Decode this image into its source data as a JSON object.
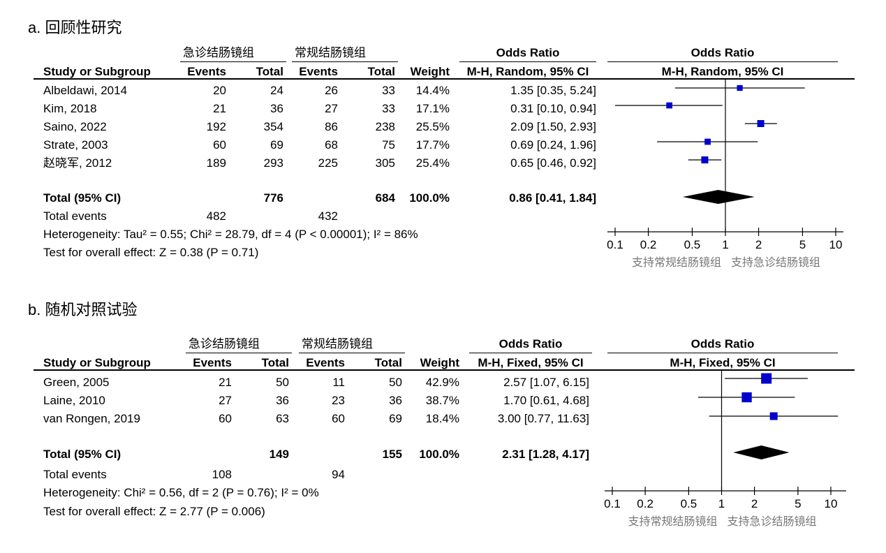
{
  "panels": [
    {
      "title": "a. 回顾性研究",
      "group1": "急诊结肠镜组",
      "group2": "常规结肠镜组",
      "col_study": "Study or Subgroup",
      "col_events": "Events",
      "col_total": "Total",
      "col_weight": "Weight",
      "or_header": "Odds Ratio",
      "or_method": "M-H, Random, 95% CI",
      "studies": [
        {
          "name": "Albeldawi, 2014",
          "e1": "20",
          "t1": "24",
          "e2": "26",
          "t2": "33",
          "weight": "14.4%",
          "ci": "1.35 [0.35, 5.24]"
        },
        {
          "name": "Kim, 2018",
          "e1": "21",
          "t1": "36",
          "e2": "27",
          "t2": "33",
          "weight": "17.1%",
          "ci": "0.31 [0.10, 0.94]"
        },
        {
          "name": "Saino, 2022",
          "e1": "192",
          "t1": "354",
          "e2": "86",
          "t2": "238",
          "weight": "25.5%",
          "ci": "2.09 [1.50, 2.93]"
        },
        {
          "name": "Strate, 2003",
          "e1": "60",
          "t1": "69",
          "e2": "68",
          "t2": "75",
          "weight": "17.7%",
          "ci": "0.69 [0.24, 1.96]"
        },
        {
          "name": "赵晓军, 2012",
          "e1": "189",
          "t1": "293",
          "e2": "225",
          "t2": "305",
          "weight": "25.4%",
          "ci": "0.65 [0.46, 0.92]"
        }
      ],
      "total": {
        "label": "Total (95% CI)",
        "t1": "776",
        "t2": "684",
        "weight": "100.0%",
        "ci": "0.86 [0.41, 1.84]"
      },
      "events": {
        "label": "Total events",
        "e1": "482",
        "e2": "432"
      },
      "heterogeneity": "Heterogeneity: Tau² = 0.55; Chi² = 28.79, df = 4 (P < 0.00001); I² = 86%",
      "overall": "Test for overall effect: Z = 0.38 (P = 0.71)",
      "ticks": [
        "0.1",
        "0.2",
        "0.5",
        "1",
        "2",
        "5",
        "10"
      ],
      "favours_left": "支持常规结肠镜组",
      "favours_right": "支持急诊结肠镜组"
    },
    {
      "title": "b. 随机对照试验",
      "group1": "急诊结肠镜组",
      "group2": "常规结肠镜组",
      "col_study": "Study or Subgroup",
      "col_events": "Events",
      "col_total": "Total",
      "col_weight": "Weight",
      "or_header": "Odds Ratio",
      "or_method": "M-H, Fixed, 95% CI",
      "studies": [
        {
          "name": "Green, 2005",
          "e1": "21",
          "t1": "50",
          "e2": "11",
          "t2": "50",
          "weight": "42.9%",
          "ci": "2.57 [1.07, 6.15]"
        },
        {
          "name": "Laine, 2010",
          "e1": "27",
          "t1": "36",
          "e2": "23",
          "t2": "36",
          "weight": "38.7%",
          "ci": "1.70 [0.61, 4.68]"
        },
        {
          "name": "van Rongen, 2019",
          "e1": "60",
          "t1": "63",
          "e2": "60",
          "t2": "69",
          "weight": "18.4%",
          "ci": "3.00 [0.77, 11.63]"
        }
      ],
      "total": {
        "label": "Total (95% CI)",
        "t1": "149",
        "t2": "155",
        "weight": "100.0%",
        "ci": "2.31 [1.28, 4.17]"
      },
      "events": {
        "label": "Total events",
        "e1": "108",
        "e2": "94"
      },
      "heterogeneity": "Heterogeneity: Chi² = 0.56, df = 2 (P = 0.76); I² = 0%",
      "overall": "Test for overall effect: Z = 2.77 (P = 0.006)",
      "ticks": [
        "0.1",
        "0.2",
        "0.5",
        "1",
        "2",
        "5",
        "10"
      ],
      "favours_left": "支持常规结肠镜组",
      "favours_right": "支持急诊结肠镜组"
    }
  ],
  "chart_data": [
    {
      "type": "forest",
      "scale": "log",
      "xlim": [
        0.1,
        10
      ],
      "x_ticks": [
        0.1,
        0.2,
        0.5,
        1,
        2,
        5,
        10
      ],
      "studies": [
        {
          "name": "Albeldawi, 2014",
          "or": 1.35,
          "lo": 0.35,
          "hi": 5.24,
          "weight": 14.4
        },
        {
          "name": "Kim, 2018",
          "or": 0.31,
          "lo": 0.1,
          "hi": 0.94,
          "weight": 17.1
        },
        {
          "name": "Saino, 2022",
          "or": 2.09,
          "lo": 1.5,
          "hi": 2.93,
          "weight": 25.5
        },
        {
          "name": "Strate, 2003",
          "or": 0.69,
          "lo": 0.24,
          "hi": 1.96,
          "weight": 17.7
        },
        {
          "name": "赵晓军, 2012",
          "or": 0.65,
          "lo": 0.46,
          "hi": 0.92,
          "weight": 25.4
        }
      ],
      "pooled": {
        "or": 0.86,
        "lo": 0.41,
        "hi": 1.84
      }
    },
    {
      "type": "forest",
      "scale": "log",
      "xlim": [
        0.1,
        10
      ],
      "x_ticks": [
        0.1,
        0.2,
        0.5,
        1,
        2,
        5,
        10
      ],
      "studies": [
        {
          "name": "Green, 2005",
          "or": 2.57,
          "lo": 1.07,
          "hi": 6.15,
          "weight": 42.9
        },
        {
          "name": "Laine, 2010",
          "or": 1.7,
          "lo": 0.61,
          "hi": 4.68,
          "weight": 38.7
        },
        {
          "name": "van Rongen, 2019",
          "or": 3.0,
          "lo": 0.77,
          "hi": 11.63,
          "weight": 18.4
        }
      ],
      "pooled": {
        "or": 2.31,
        "lo": 1.28,
        "hi": 4.17
      }
    }
  ],
  "colors": {
    "marker": "#0000cc",
    "diamond": "#000000",
    "favours": "#777777"
  }
}
